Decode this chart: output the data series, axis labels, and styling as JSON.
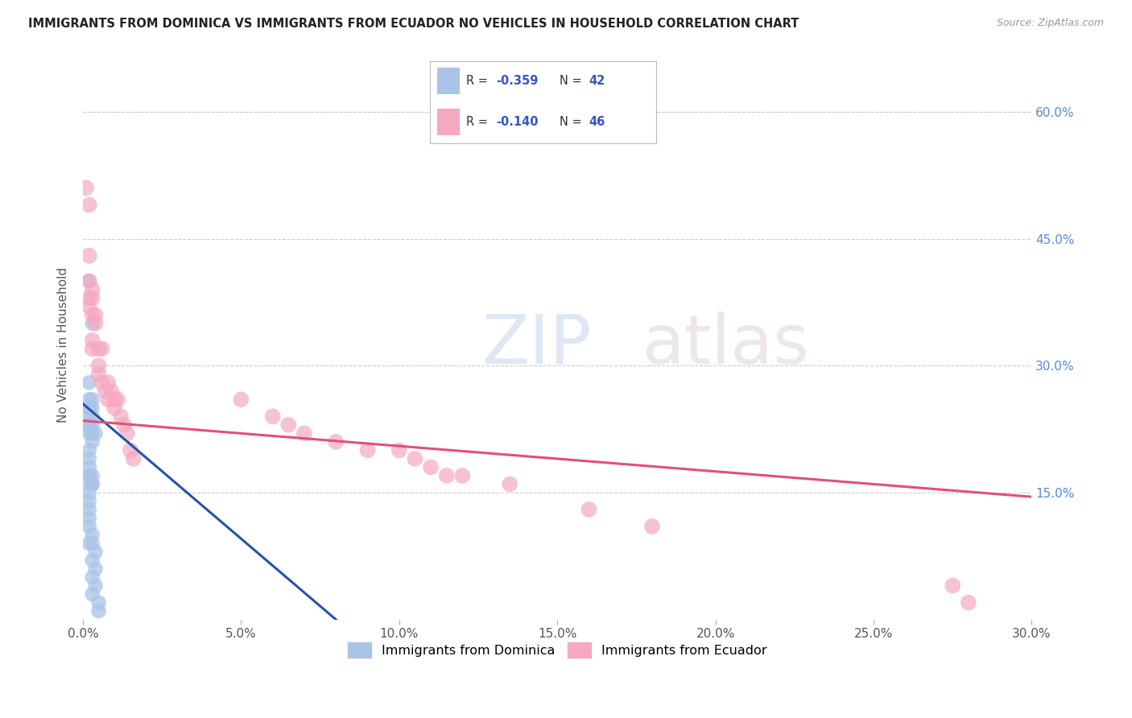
{
  "title": "IMMIGRANTS FROM DOMINICA VS IMMIGRANTS FROM ECUADOR NO VEHICLES IN HOUSEHOLD CORRELATION CHART",
  "source": "Source: ZipAtlas.com",
  "ylabel": "No Vehicles in Household",
  "legend_label_1": "Immigrants from Dominica",
  "legend_label_2": "Immigrants from Ecuador",
  "R1": -0.359,
  "N1": 42,
  "R2": -0.14,
  "N2": 46,
  "color1": "#aac4e8",
  "color2": "#f5a8c0",
  "line_color1": "#2255aa",
  "line_color2": "#e0507a",
  "xlim": [
    0.0,
    0.3
  ],
  "ylim": [
    0.0,
    0.65
  ],
  "right_yticks": [
    0.15,
    0.3,
    0.45,
    0.6
  ],
  "right_yticklabels": [
    "15.0%",
    "30.0%",
    "45.0%",
    "60.0%"
  ],
  "xticklabels": [
    "0.0%",
    "",
    "5.0%",
    "",
    "10.0%",
    "",
    "15.0%",
    "",
    "20.0%",
    "",
    "25.0%",
    "",
    "30.0%"
  ],
  "background_color": "#ffffff",
  "grid_color": "#cccccc",
  "scatter1_x": [
    0.002,
    0.003,
    0.002,
    0.003,
    0.002,
    0.003,
    0.003,
    0.002,
    0.002,
    0.002,
    0.002,
    0.003,
    0.002,
    0.003,
    0.002,
    0.003,
    0.004,
    0.002,
    0.002,
    0.002,
    0.002,
    0.003,
    0.003,
    0.003,
    0.002,
    0.002,
    0.002,
    0.002,
    0.002,
    0.002,
    0.002,
    0.003,
    0.002,
    0.003,
    0.004,
    0.003,
    0.004,
    0.003,
    0.004,
    0.003,
    0.005,
    0.005
  ],
  "scatter1_y": [
    0.4,
    0.35,
    0.28,
    0.26,
    0.25,
    0.24,
    0.25,
    0.26,
    0.24,
    0.25,
    0.23,
    0.23,
    0.23,
    0.22,
    0.22,
    0.21,
    0.22,
    0.2,
    0.19,
    0.18,
    0.17,
    0.16,
    0.16,
    0.17,
    0.16,
    0.17,
    0.15,
    0.14,
    0.13,
    0.12,
    0.11,
    0.1,
    0.09,
    0.09,
    0.08,
    0.07,
    0.06,
    0.05,
    0.04,
    0.03,
    0.02,
    0.01
  ],
  "scatter2_x": [
    0.001,
    0.002,
    0.002,
    0.002,
    0.002,
    0.002,
    0.003,
    0.003,
    0.003,
    0.003,
    0.003,
    0.004,
    0.004,
    0.005,
    0.005,
    0.005,
    0.006,
    0.006,
    0.007,
    0.008,
    0.008,
    0.009,
    0.01,
    0.01,
    0.011,
    0.012,
    0.013,
    0.014,
    0.015,
    0.016,
    0.05,
    0.06,
    0.065,
    0.07,
    0.08,
    0.09,
    0.1,
    0.105,
    0.11,
    0.115,
    0.12,
    0.135,
    0.16,
    0.18,
    0.275,
    0.28
  ],
  "scatter2_y": [
    0.51,
    0.49,
    0.43,
    0.4,
    0.38,
    0.37,
    0.39,
    0.36,
    0.38,
    0.33,
    0.32,
    0.36,
    0.35,
    0.32,
    0.3,
    0.29,
    0.32,
    0.28,
    0.27,
    0.28,
    0.26,
    0.27,
    0.26,
    0.25,
    0.26,
    0.24,
    0.23,
    0.22,
    0.2,
    0.19,
    0.26,
    0.24,
    0.23,
    0.22,
    0.21,
    0.2,
    0.2,
    0.19,
    0.18,
    0.17,
    0.17,
    0.16,
    0.13,
    0.11,
    0.04,
    0.02
  ],
  "trend1_x": [
    0.0,
    0.08
  ],
  "trend1_y": [
    0.255,
    0.0
  ],
  "trend2_x": [
    0.0,
    0.3
  ],
  "trend2_y": [
    0.235,
    0.145
  ]
}
